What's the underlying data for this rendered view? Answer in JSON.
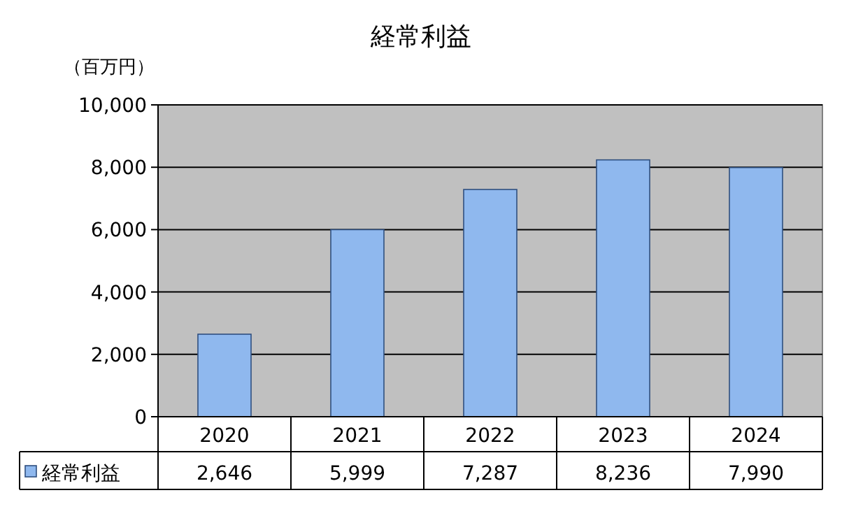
{
  "chart_data": {
    "type": "bar",
    "title": "経常利益",
    "ylabel": "（百万円）",
    "categories": [
      "2020",
      "2021",
      "2022",
      "2023",
      "2024"
    ],
    "series": [
      {
        "name": "経常利益",
        "color": "#8fb8ee",
        "values": [
          2646,
          5999,
          7287,
          8236,
          7990
        ],
        "value_labels": [
          "2,646",
          "5,999",
          "7,287",
          "8,236",
          "7,990"
        ]
      }
    ],
    "ylim": [
      0,
      10000
    ],
    "yticks": [
      0,
      {
        "value": 2000,
        "label": "2,000"
      },
      {
        "value": 4000,
        "label": "4,000"
      },
      {
        "value": 6000,
        "label": "6,000"
      },
      {
        "value": 8000,
        "label": "8,000"
      },
      {
        "value": 10000,
        "label": "10,000"
      }
    ],
    "grid": "y",
    "legend": "bottom"
  }
}
